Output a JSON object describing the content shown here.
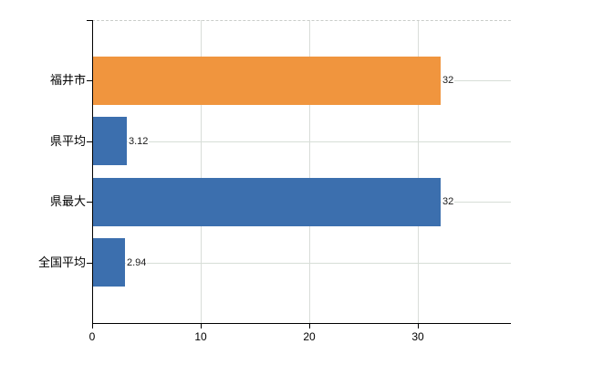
{
  "chart_data": {
    "type": "bar",
    "orientation": "horizontal",
    "title": "",
    "xlabel": "",
    "ylabel": "",
    "categories": [
      "福井市",
      "県平均",
      "県最大",
      "全国平均"
    ],
    "values": [
      32,
      3.12,
      32,
      2.94
    ],
    "value_labels": [
      "32",
      "3.12",
      "32",
      "2.94"
    ],
    "bar_colors": [
      "#f0953e",
      "#3c6fae",
      "#3c6fae",
      "#3c6fae"
    ],
    "xticks": [
      0,
      10,
      20,
      30
    ],
    "xtick_labels": [
      "0",
      "10",
      "20",
      "30"
    ],
    "xlim": [
      0,
      38.6
    ],
    "grid": true,
    "legend": false,
    "background_color": "#ffffff",
    "axis_color": "#000000",
    "gridline_color": "#d8ded8",
    "top_border_style": "dashed"
  }
}
